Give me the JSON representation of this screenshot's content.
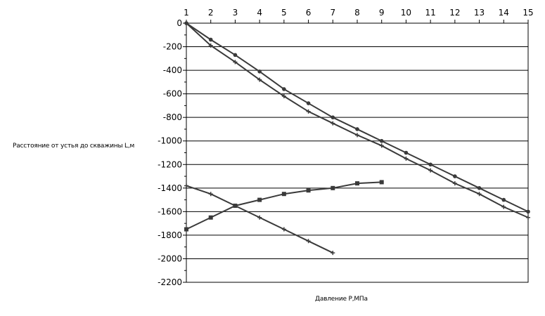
{
  "chart_data": {
    "type": "line",
    "title": "",
    "xlabel": "Давление P,МПа",
    "ylabel": "Расстояние от устья до скважины L,м",
    "xlim": [
      1,
      15
    ],
    "ylim": [
      -2200,
      0
    ],
    "x_ticks": [
      1,
      2,
      3,
      4,
      5,
      6,
      7,
      8,
      9,
      10,
      11,
      12,
      13,
      14,
      15
    ],
    "y_ticks": [
      0,
      -200,
      -400,
      -600,
      -800,
      -1000,
      -1200,
      -1400,
      -1600,
      -1800,
      -2000,
      -2200
    ],
    "x_axis_position": "top",
    "grid": "horizontal",
    "legend": "none",
    "line_color": "#3a3a3a",
    "series": [
      {
        "marker": "circle",
        "x": [
          1,
          2,
          3,
          4,
          5,
          6,
          7,
          8,
          9,
          10,
          11,
          12,
          13,
          14,
          15
        ],
        "values": [
          0,
          -140,
          -270,
          -410,
          -560,
          -680,
          -800,
          -900,
          -1000,
          -1100,
          -1200,
          -1300,
          -1400,
          -1500,
          -1600
        ]
      },
      {
        "marker": "plus",
        "x": [
          1,
          2,
          3,
          4,
          5,
          6,
          7,
          8,
          9,
          10,
          11,
          12,
          13,
          14,
          15
        ],
        "values": [
          0,
          -190,
          -330,
          -480,
          -620,
          -750,
          -850,
          -950,
          -1040,
          -1150,
          -1250,
          -1360,
          -1450,
          -1560,
          -1650
        ]
      },
      {
        "marker": "square",
        "x": [
          1,
          2,
          3,
          4,
          5,
          6,
          7,
          8,
          9
        ],
        "values": [
          -1750,
          -1650,
          -1550,
          -1500,
          -1450,
          -1420,
          -1400,
          -1360,
          -1350
        ]
      },
      {
        "marker": "plus",
        "x": [
          1,
          2,
          3,
          4,
          5,
          6,
          7
        ],
        "values": [
          -1380,
          -1450,
          -1550,
          -1650,
          -1750,
          -1850,
          -1950
        ]
      }
    ]
  }
}
